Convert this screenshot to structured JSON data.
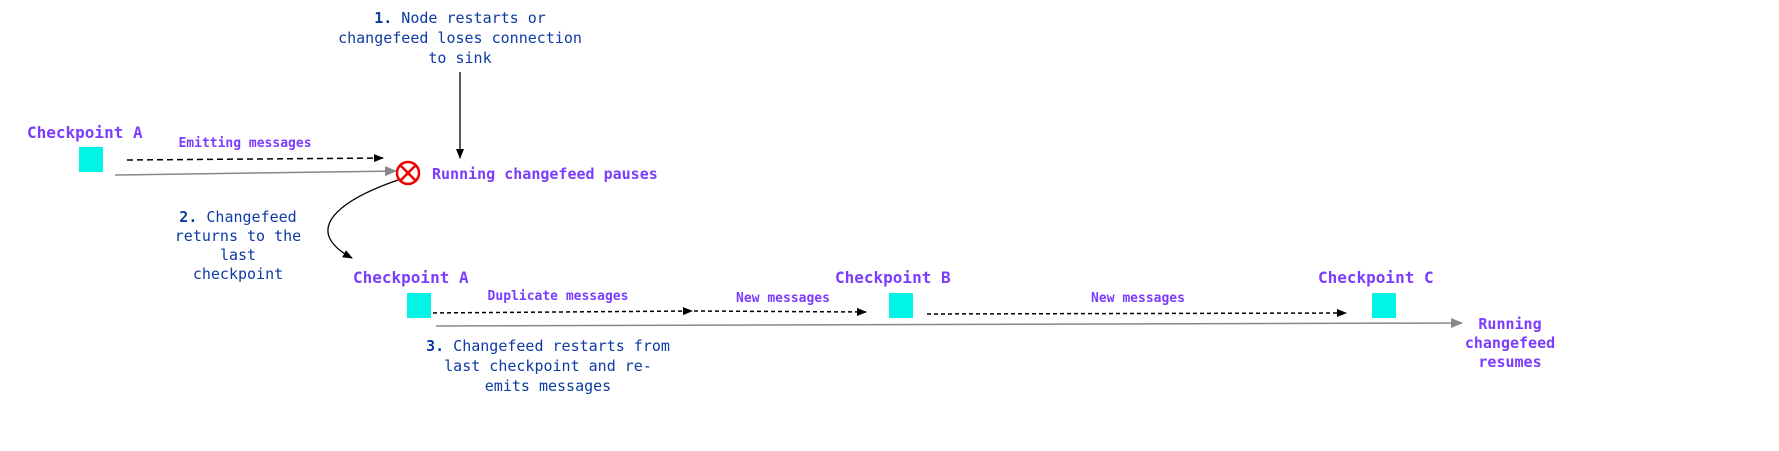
{
  "annotations": {
    "step1": {
      "number": "1.",
      "lines": [
        "Node restarts or",
        "changefeed loses connection",
        "to sink"
      ]
    },
    "step2": {
      "number": "2.",
      "lines": [
        "Changefeed",
        "returns to the",
        "last",
        "checkpoint"
      ]
    },
    "step3": {
      "number": "3.",
      "lines": [
        "Changefeed restarts from",
        "last checkpoint and re-",
        "emits messages"
      ]
    }
  },
  "checkpoints": {
    "first_a": "Checkpoint A",
    "second_a": "Checkpoint A",
    "b": "Checkpoint B",
    "c": "Checkpoint C"
  },
  "messages": {
    "emitting": "Emitting messages",
    "duplicate": "Duplicate messages",
    "new_1": "New messages",
    "new_2": "New messages"
  },
  "status": {
    "pauses": "Running changefeed pauses",
    "resumes": [
      "Running",
      "changefeed",
      "resumes"
    ]
  },
  "colors": {
    "label": "#7b3cff",
    "note": "#0d3aa3",
    "checkpoint": "#00f5e6",
    "error": "#ff0000",
    "timeline": "#888888"
  },
  "icons": {
    "pause": "circle-x-icon"
  }
}
